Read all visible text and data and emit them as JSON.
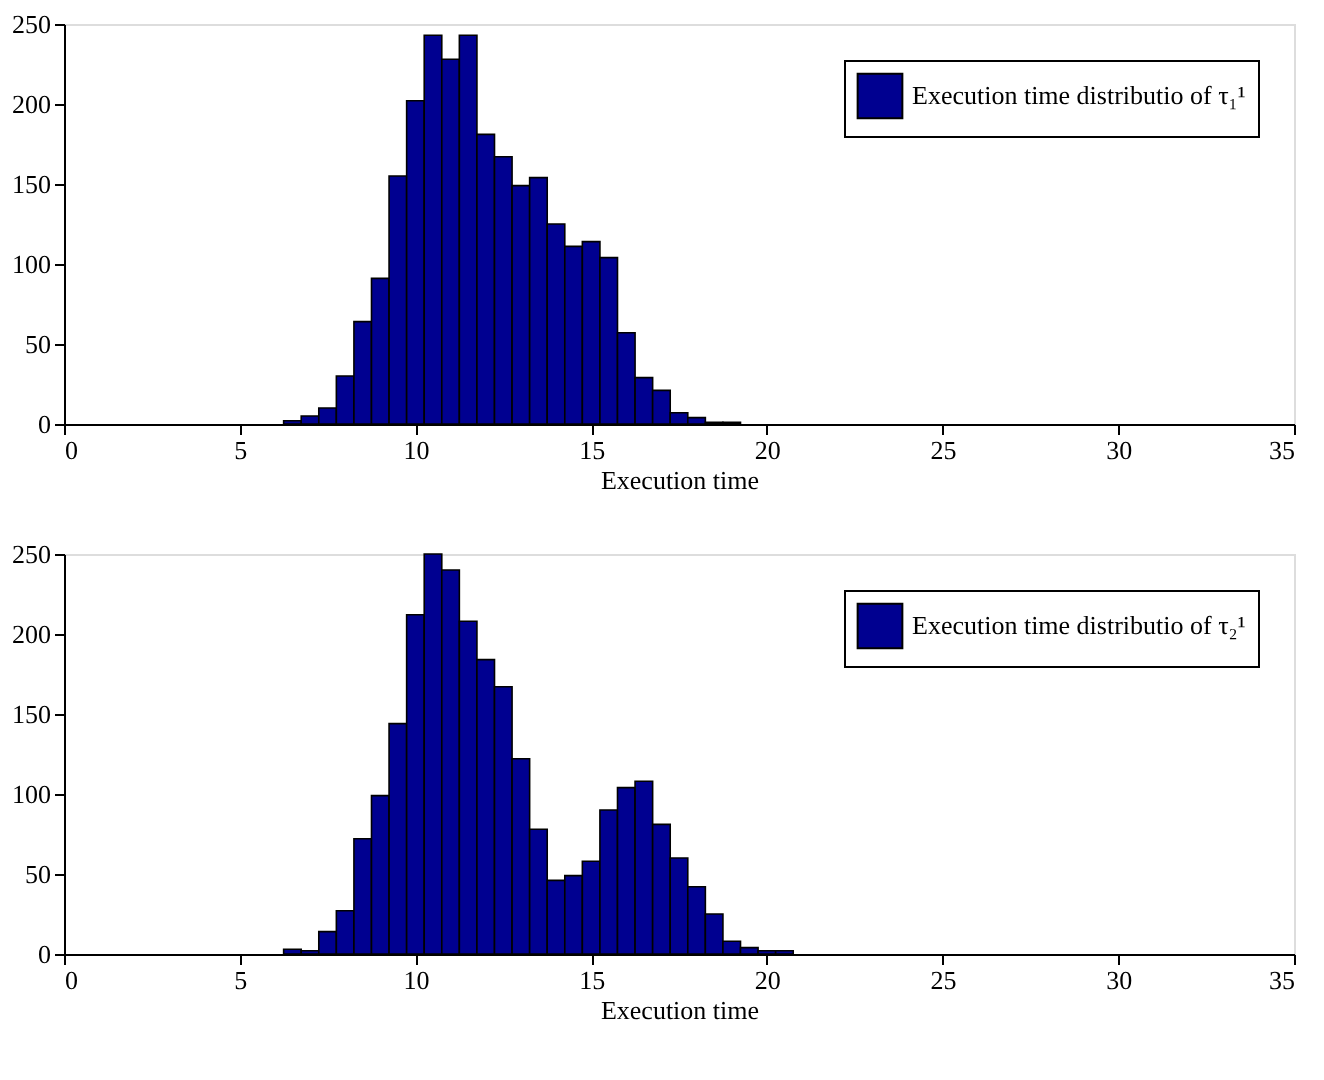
{
  "chart_data": [
    {
      "type": "histogram",
      "xlabel": "Execution time",
      "legend": "top right",
      "bins": [
        6.25,
        6.75,
        7.25,
        7.75,
        8.25,
        8.75,
        9.25,
        9.75,
        10.25,
        10.75,
        11.25,
        11.75,
        12.25,
        12.75,
        13.25,
        13.75,
        14.25,
        14.75,
        15.25,
        15.75,
        16.25,
        16.75,
        17.25,
        17.75,
        18.25,
        18.75,
        19.25
      ],
      "series": [
        {
          "name": "Execution time distributio of τ₁¹",
          "color": "#000090",
          "values": [
            2,
            5,
            10,
            30,
            64,
            91,
            155,
            202,
            243,
            228,
            243,
            181,
            167,
            149,
            154,
            125,
            111,
            114,
            104,
            57,
            29,
            21,
            7,
            4,
            1,
            1
          ]
        }
      ],
      "xlim": [
        0,
        35
      ],
      "xticks": [
        0,
        5,
        10,
        15,
        20,
        25,
        30,
        35
      ],
      "ylim": [
        0,
        250
      ],
      "yticks": [
        0,
        50,
        100,
        150,
        200,
        250
      ],
      "grid": false
    },
    {
      "type": "histogram",
      "xlabel": "Execution time",
      "legend": "top right",
      "bins": [
        6.25,
        6.75,
        7.25,
        7.75,
        8.25,
        8.75,
        9.25,
        9.75,
        10.25,
        10.75,
        11.25,
        11.75,
        12.25,
        12.75,
        13.25,
        13.75,
        14.25,
        14.75,
        15.25,
        15.75,
        16.25,
        16.75,
        17.25,
        17.75,
        18.25,
        18.75,
        19.25,
        19.75,
        20.25,
        20.75
      ],
      "series": [
        {
          "name": "Execution time distributio of τ₂¹",
          "color": "#000090",
          "values": [
            3,
            2,
            14,
            27,
            72,
            99,
            144,
            212,
            250,
            240,
            208,
            184,
            167,
            122,
            78,
            46,
            49,
            58,
            90,
            104,
            108,
            81,
            60,
            42,
            25,
            8,
            4,
            2,
            2
          ]
        }
      ],
      "xlim": [
        0,
        35
      ],
      "xticks": [
        0,
        5,
        10,
        15,
        20,
        25,
        30,
        35
      ],
      "ylim": [
        0,
        250
      ],
      "yticks": [
        0,
        50,
        100,
        150,
        200,
        250
      ],
      "grid": false
    }
  ]
}
